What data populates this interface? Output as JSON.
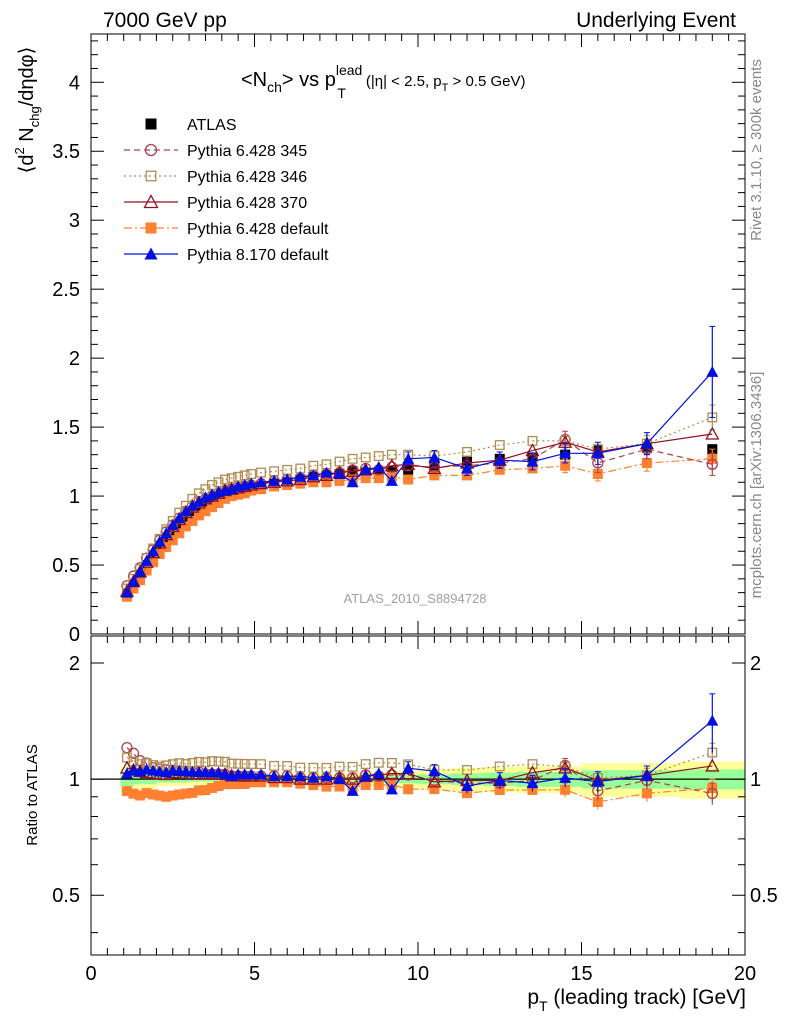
{
  "header": {
    "left": "7000 GeV pp",
    "right": "Underlying Event"
  },
  "title": {
    "n_open": "<N",
    "n_sub": "ch",
    "n_close": "> vs p",
    "p_sup": "lead",
    "p_sub": "T",
    "cut_a": "(|η| < 2.5, p",
    "cut_sub": "T",
    "cut_b": " > 0.5 GeV)"
  },
  "side_labels": {
    "rivet": "Rivet 3.1.10, ≥ 300k events",
    "mcplots": "mcplots.cern.ch [arXiv:1306.3436]"
  },
  "analysis_id": "ATLAS_2010_S8894728",
  "ylabel_top": {
    "a": "⟨d",
    "sup": "2",
    "b": " N",
    "sub": "chg",
    "c": "/dηdφ⟩"
  },
  "ylabel_bottom": "Ratio to ATLAS",
  "xlabel": {
    "a": "p",
    "sub": "T",
    "b": " (leading track) [GeV]"
  },
  "chart_data": {
    "type": "scatter",
    "x_range": [
      0,
      20
    ],
    "top": {
      "ylim": [
        0,
        4.35
      ],
      "yticks": [
        0,
        0.5,
        1,
        1.5,
        2,
        2.5,
        3,
        3.5,
        4
      ],
      "ytick_labels": [
        "0",
        "0.5",
        "1",
        "1.5",
        "2",
        "2.5",
        "3",
        "3.5",
        "4"
      ]
    },
    "ratio": {
      "ylim": [
        0.35,
        2.35
      ],
      "yticks": [
        0.5,
        1,
        2
      ],
      "ytick_labels": [
        "0.5",
        "1",
        "2"
      ],
      "log_scale": true
    },
    "xticks": [
      0,
      5,
      10,
      15,
      20
    ],
    "xtick_labels": [
      "0",
      "5",
      "10",
      "15",
      "20"
    ],
    "legend_placement": "top-left",
    "x": [
      1.1,
      1.3,
      1.5,
      1.7,
      1.9,
      2.1,
      2.3,
      2.5,
      2.7,
      2.9,
      3.1,
      3.3,
      3.5,
      3.7,
      3.9,
      4.1,
      4.3,
      4.5,
      4.7,
      4.9,
      5.2,
      5.6,
      6.0,
      6.4,
      6.8,
      7.2,
      7.6,
      8.0,
      8.4,
      8.8,
      9.2,
      9.7,
      10.5,
      11.5,
      12.5,
      13.5,
      14.5,
      15.5,
      17.0,
      19.0
    ],
    "series": [
      {
        "name": "ATLAS",
        "color": "#000000",
        "marker": "square-filled",
        "line": "none",
        "values": [
          0.29,
          0.36,
          0.43,
          0.5,
          0.57,
          0.64,
          0.7,
          0.75,
          0.8,
          0.85,
          0.89,
          0.92,
          0.95,
          0.97,
          0.99,
          1.01,
          1.03,
          1.04,
          1.05,
          1.06,
          1.07,
          1.09,
          1.1,
          1.12,
          1.14,
          1.15,
          1.16,
          1.18,
          1.17,
          1.17,
          1.18,
          1.19,
          1.22,
          1.25,
          1.27,
          1.28,
          1.3,
          1.33,
          1.35,
          1.34
        ]
      },
      {
        "name": "Pythia 6.428 345",
        "color": "#b04050",
        "marker": "circle-open",
        "line": "dashed",
        "values": [
          0.35,
          0.42,
          0.48,
          0.55,
          0.61,
          0.68,
          0.74,
          0.79,
          0.84,
          0.89,
          0.93,
          0.96,
          0.98,
          1.0,
          1.02,
          1.04,
          1.05,
          1.06,
          1.07,
          1.08,
          1.09,
          1.11,
          1.12,
          1.13,
          1.15,
          1.16,
          1.17,
          1.19,
          1.2,
          1.19,
          1.21,
          1.22,
          1.21,
          1.22,
          1.24,
          1.27,
          1.41,
          1.24,
          1.34,
          1.23
        ]
      },
      {
        "name": "Pythia 6.428 346",
        "color": "#b08c50",
        "marker": "square-open",
        "line": "dotted",
        "values": [
          0.33,
          0.4,
          0.47,
          0.55,
          0.62,
          0.69,
          0.76,
          0.82,
          0.88,
          0.93,
          0.98,
          1.02,
          1.05,
          1.08,
          1.1,
          1.12,
          1.13,
          1.14,
          1.15,
          1.16,
          1.17,
          1.18,
          1.19,
          1.2,
          1.22,
          1.23,
          1.25,
          1.27,
          1.28,
          1.29,
          1.3,
          1.3,
          1.29,
          1.32,
          1.37,
          1.4,
          1.4,
          1.34,
          1.38,
          1.57
        ]
      },
      {
        "name": "Pythia 6.428 370",
        "color": "#901020",
        "marker": "triangle-open",
        "line": "solid",
        "values": [
          0.31,
          0.38,
          0.45,
          0.52,
          0.59,
          0.66,
          0.72,
          0.78,
          0.83,
          0.88,
          0.92,
          0.95,
          0.98,
          1.0,
          1.02,
          1.04,
          1.05,
          1.06,
          1.07,
          1.08,
          1.09,
          1.1,
          1.11,
          1.12,
          1.14,
          1.15,
          1.17,
          1.18,
          1.19,
          1.2,
          1.22,
          1.23,
          1.2,
          1.24,
          1.26,
          1.33,
          1.39,
          1.32,
          1.38,
          1.45
        ]
      },
      {
        "name": "Pythia 6.428 default",
        "color": "#ff8030",
        "marker": "square-filled",
        "line": "dashdot",
        "values": [
          0.27,
          0.33,
          0.39,
          0.46,
          0.52,
          0.58,
          0.63,
          0.68,
          0.73,
          0.78,
          0.82,
          0.86,
          0.89,
          0.92,
          0.95,
          0.98,
          1.0,
          1.01,
          1.02,
          1.04,
          1.05,
          1.07,
          1.08,
          1.09,
          1.1,
          1.1,
          1.11,
          1.12,
          1.13,
          1.13,
          1.14,
          1.12,
          1.15,
          1.15,
          1.19,
          1.2,
          1.22,
          1.16,
          1.24,
          1.27
        ]
      },
      {
        "name": "Pythia 8.170 default",
        "color": "#0010e0",
        "marker": "triangle-filled",
        "line": "solid",
        "values": [
          0.3,
          0.38,
          0.45,
          0.53,
          0.6,
          0.67,
          0.73,
          0.79,
          0.84,
          0.89,
          0.93,
          0.96,
          0.99,
          1.01,
          1.03,
          1.04,
          1.05,
          1.07,
          1.08,
          1.09,
          1.1,
          1.11,
          1.12,
          1.14,
          1.15,
          1.17,
          1.16,
          1.1,
          1.19,
          1.21,
          1.11,
          1.27,
          1.28,
          1.2,
          1.26,
          1.25,
          1.31,
          1.31,
          1.38,
          1.9
        ]
      }
    ],
    "error_bars": {
      "Pythia 8.170 default": {
        "x": [
          9.7,
          10.5,
          11.5,
          12.5,
          13.5,
          14.5,
          15.5,
          17.0,
          19.0
        ],
        "err": [
          0.05,
          0.05,
          0.05,
          0.06,
          0.06,
          0.07,
          0.08,
          0.08,
          0.33
        ]
      },
      "Pythia 6.428 345": {
        "x": [
          14.5,
          15.5,
          17.0,
          19.0
        ],
        "err": [
          0.06,
          0.07,
          0.07,
          0.08
        ]
      },
      "Pythia 6.428 346": {
        "x": [
          17.0,
          19.0
        ],
        "err": [
          0.06,
          0.09
        ]
      },
      "Pythia 6.428 default": {
        "x": [
          14.5,
          15.5,
          17.0,
          19.0
        ],
        "err": [
          0.05,
          0.05,
          0.06,
          0.07
        ]
      }
    },
    "ratio_bands": {
      "x_edges": [
        0.9,
        1.3,
        2.0,
        3.0,
        4.0,
        5.0,
        6.5,
        8.0,
        9.0,
        10.0,
        11.0,
        12.0,
        13.0,
        14.0,
        15.0,
        16.0,
        18.0,
        20.0
      ],
      "yellow_half_width": [
        0.075,
        0.055,
        0.04,
        0.035,
        0.035,
        0.035,
        0.035,
        0.04,
        0.05,
        0.06,
        0.07,
        0.075,
        0.08,
        0.08,
        0.1,
        0.1,
        0.11
      ],
      "green_half_width": [
        0.04,
        0.03,
        0.02,
        0.015,
        0.015,
        0.015,
        0.015,
        0.02,
        0.025,
        0.03,
        0.035,
        0.04,
        0.045,
        0.045,
        0.055,
        0.055,
        0.06
      ]
    }
  }
}
